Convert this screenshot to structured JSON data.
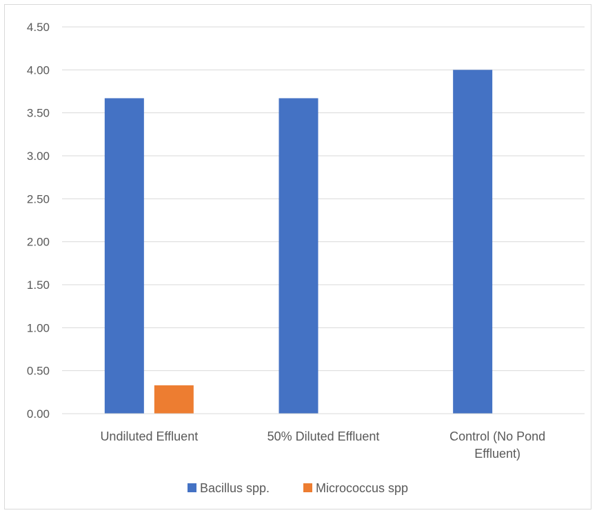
{
  "chart_data": {
    "type": "bar",
    "title": "",
    "xlabel": "",
    "ylabel": "",
    "categories": [
      [
        "Undiluted Effluent"
      ],
      [
        "50% Diluted Effluent"
      ],
      [
        "Control (No Pond",
        "Effluent)"
      ]
    ],
    "series": [
      {
        "name": "Bacillus spp.",
        "color": "#4472c4",
        "values": [
          3.67,
          3.67,
          4.0
        ]
      },
      {
        "name": "Micrococcus spp",
        "color": "#ed7d31",
        "values": [
          0.33,
          0.0,
          0.0
        ]
      }
    ],
    "ylim": [
      0,
      4.5
    ],
    "yticks": [
      "0.00",
      "0.50",
      "1.00",
      "1.50",
      "2.00",
      "2.50",
      "3.00",
      "3.50",
      "4.00",
      "4.50"
    ],
    "grid": true,
    "legend_position": "bottom"
  }
}
